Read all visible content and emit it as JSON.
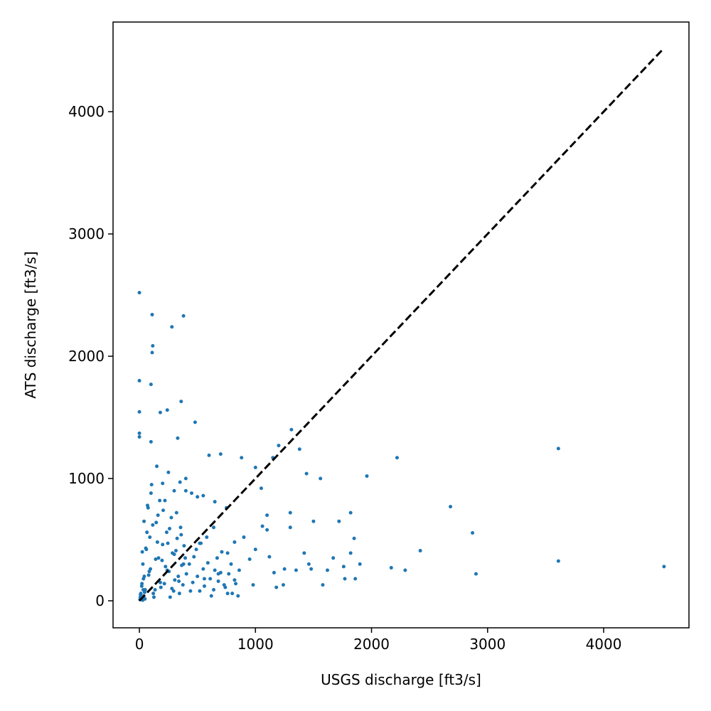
{
  "chart_data": {
    "type": "scatter",
    "x_label": "USGS discharge [ft3/s]",
    "y_label": "ATS discharge [ft3/s]",
    "color": "#1f77b4",
    "xlim": [
      -227,
      4735
    ],
    "ylim": [
      -221,
      4733
    ],
    "xticks": [
      0,
      1000,
      2000,
      3000,
      4000
    ],
    "yticks": [
      0,
      1000,
      2000,
      3000,
      4000
    ],
    "grid": false,
    "x": [
      0,
      110,
      380,
      280,
      115,
      110,
      0,
      100,
      0,
      240,
      180,
      360,
      480,
      0,
      0,
      330,
      1310,
      1380,
      3610,
      2220,
      1960,
      2680,
      2870,
      2420,
      3610,
      4520,
      2900,
      2170,
      2290,
      1820,
      1850,
      1720,
      1500,
      1440,
      1560,
      1300,
      1300,
      1900,
      1770,
      1860,
      1580,
      1670,
      1820,
      1760,
      1620,
      700,
      600,
      880,
      1000,
      1150,
      1200,
      100,
      400,
      1100,
      1050,
      1100,
      1250,
      1000,
      950,
      1180,
      1350,
      1420,
      1460,
      1480,
      1240,
      1160,
      900,
      820,
      760,
      680,
      640,
      560,
      520,
      980,
      1060,
      1120,
      10,
      20,
      30,
      40,
      50,
      60,
      70,
      80,
      90,
      100,
      120,
      140,
      160,
      180,
      200,
      220,
      240,
      260,
      280,
      300,
      320,
      340,
      360,
      380,
      400,
      15,
      35,
      55,
      75,
      95,
      115,
      135,
      155,
      175,
      195,
      215,
      235,
      255,
      275,
      295,
      315,
      335,
      355,
      375,
      395,
      25,
      45,
      65,
      85,
      105,
      125,
      145,
      165,
      185,
      205,
      225,
      245,
      265,
      285,
      305,
      325,
      345,
      365,
      385,
      405,
      430,
      460,
      490,
      520,
      550,
      580,
      610,
      640,
      670,
      700,
      730,
      760,
      790,
      820,
      850,
      440,
      470,
      500,
      530,
      560,
      590,
      620,
      650,
      680,
      710,
      740,
      770,
      800,
      830,
      860,
      5,
      8,
      12,
      18,
      22,
      28,
      33,
      38,
      42,
      48,
      150,
      250,
      350,
      450,
      550,
      650,
      750,
      200,
      300,
      500
    ],
    "values": [
      2520,
      2340,
      2330,
      2240,
      2085,
      2030,
      1800,
      1770,
      1545,
      1560,
      1540,
      1630,
      1460,
      1370,
      1340,
      1330,
      1400,
      1240,
      1245,
      1170,
      1020,
      770,
      555,
      410,
      325,
      280,
      220,
      270,
      250,
      720,
      510,
      650,
      650,
      1040,
      1000,
      720,
      600,
      300,
      180,
      180,
      130,
      350,
      390,
      280,
      250,
      1200,
      1190,
      1170,
      1090,
      1170,
      1270,
      1300,
      1000,
      700,
      920,
      580,
      260,
      420,
      340,
      110,
      250,
      390,
      300,
      260,
      130,
      230,
      520,
      480,
      390,
      220,
      600,
      180,
      470,
      130,
      610,
      360,
      50,
      120,
      300,
      650,
      90,
      420,
      780,
      210,
      520,
      880,
      60,
      340,
      700,
      150,
      460,
      820,
      250,
      590,
      100,
      380,
      720,
      160,
      540,
      300,
      900,
      20,
      180,
      430,
      760,
      260,
      620,
      90,
      480,
      820,
      330,
      140,
      560,
      240,
      680,
      80,
      410,
      200,
      600,
      130,
      350,
      400,
      70,
      560,
      240,
      950,
      30,
      640,
      350,
      110,
      740,
      280,
      470,
      30,
      390,
      170,
      510,
      60,
      290,
      450,
      220,
      300,
      150,
      420,
      80,
      260,
      520,
      180,
      90,
      350,
      230,
      130,
      60,
      300,
      170,
      40,
      80,
      360,
      200,
      470,
      120,
      310,
      40,
      250,
      160,
      400,
      110,
      220,
      60,
      140,
      250,
      10,
      30,
      60,
      20,
      140,
      5,
      90,
      40,
      200,
      15,
      1100,
      1050,
      970,
      880,
      860,
      810,
      760,
      960,
      900,
      850
    ]
  },
  "reference_line": {
    "x": [
      0,
      4520
    ],
    "values": [
      0,
      4520
    ],
    "color": "#000000",
    "style": "dashed"
  }
}
